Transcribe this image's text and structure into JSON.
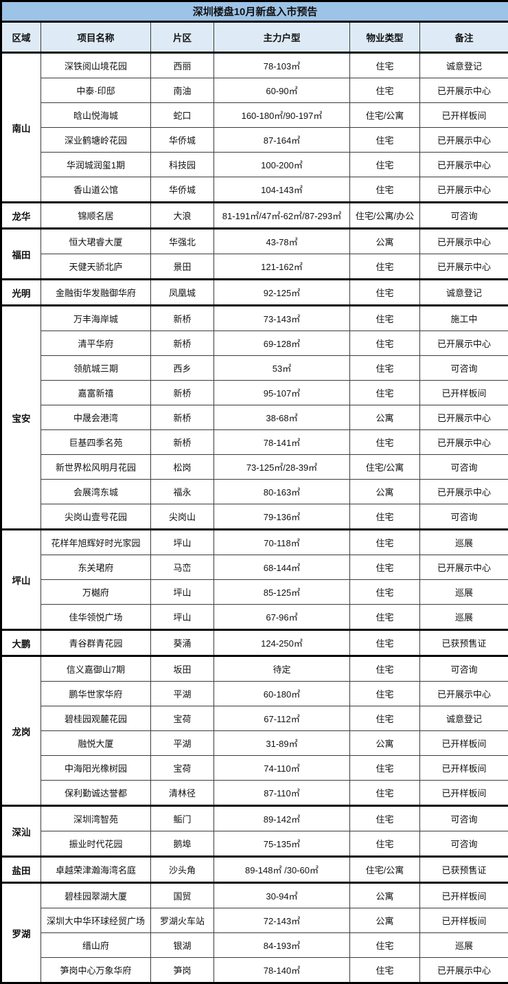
{
  "title": "深圳楼盘10月新盘入市预告",
  "columns": [
    "区域",
    "项目名称",
    "片区",
    "主力户型",
    "物业类型",
    "备注"
  ],
  "colors": {
    "title_bg": "#9DC3E6",
    "header_bg": "#DEEBF7",
    "border": "#000000",
    "text": "#111111"
  },
  "groups": [
    {
      "region": "南山",
      "rows": [
        [
          "深铁阅山境花园",
          "西丽",
          "78-103㎡",
          "住宅",
          "诚意登记"
        ],
        [
          "中泰·印邸",
          "南油",
          "60-90㎡",
          "住宅",
          "已开展示中心"
        ],
        [
          "晗山悦海城",
          "蛇口",
          "160-180㎡/90-197㎡",
          "住宅/公寓",
          "已开样板间"
        ],
        [
          "深业鹤塘岭花园",
          "华侨城",
          "87-164㎡",
          "住宅",
          "已开展示中心"
        ],
        [
          "华润城润玺1期",
          "科技园",
          "100-200㎡",
          "住宅",
          "已开展示中心"
        ],
        [
          "香山道公馆",
          "华侨城",
          "104-143㎡",
          "住宅",
          "已开展示中心"
        ]
      ]
    },
    {
      "region": "龙华",
      "rows": [
        [
          "锦顺名居",
          "大浪",
          "81-191㎡/47㎡-62㎡/87-293㎡",
          "住宅/公寓/办公",
          "可咨询"
        ]
      ]
    },
    {
      "region": "福田",
      "rows": [
        [
          "恒大珺睿大厦",
          "华强北",
          "43-78㎡",
          "公寓",
          "已开展示中心"
        ],
        [
          "天健天骄北庐",
          "景田",
          "121-162㎡",
          "住宅",
          "已开展示中心"
        ]
      ]
    },
    {
      "region": "光明",
      "rows": [
        [
          "金融街华发融御华府",
          "凤凰城",
          "92-125㎡",
          "住宅",
          "诚意登记"
        ]
      ]
    },
    {
      "region": "宝安",
      "rows": [
        [
          "万丰海岸城",
          "新桥",
          "73-143㎡",
          "住宅",
          "施工中"
        ],
        [
          "清平华府",
          "新桥",
          "69-128㎡",
          "住宅",
          "已开展示中心"
        ],
        [
          "领航城三期",
          "西乡",
          "53㎡",
          "住宅",
          "可咨询"
        ],
        [
          "嘉富新禧",
          "新桥",
          "95-107㎡",
          "住宅",
          "已开样板间"
        ],
        [
          "中晟会港湾",
          "新桥",
          "38-68㎡",
          "公寓",
          "已开展示中心"
        ],
        [
          "巨基四季名苑",
          "新桥",
          "78-141㎡",
          "住宅",
          "已开展示中心"
        ],
        [
          "新世界松风明月花园",
          "松岗",
          "73-125㎡/28-39㎡",
          "住宅/公寓",
          "可咨询"
        ],
        [
          "会展湾东城",
          "福永",
          "80-163㎡",
          "公寓",
          "已开展示中心"
        ],
        [
          "尖岗山壹号花园",
          "尖岗山",
          "79-136㎡",
          "住宅",
          "可咨询"
        ]
      ]
    },
    {
      "region": "坪山",
      "rows": [
        [
          "花样年旭辉好时光家园",
          "坪山",
          "70-118㎡",
          "住宅",
          "巡展"
        ],
        [
          "东关珺府",
          "马峦",
          "68-144㎡",
          "住宅",
          "已开展示中心"
        ],
        [
          "万樾府",
          "坪山",
          "85-125㎡",
          "住宅",
          "巡展"
        ],
        [
          "佳华领悦广场",
          "坪山",
          "67-96㎡",
          "住宅",
          "巡展"
        ]
      ]
    },
    {
      "region": "大鹏",
      "rows": [
        [
          "青谷群青花园",
          "葵涌",
          "124-250㎡",
          "住宅",
          "已获预售证"
        ]
      ]
    },
    {
      "region": "龙岗",
      "rows": [
        [
          "信义嘉御山7期",
          "坂田",
          "待定",
          "住宅",
          "可咨询"
        ],
        [
          "鹏华世家华府",
          "平湖",
          "60-180㎡",
          "住宅",
          "已开展示中心"
        ],
        [
          "碧桂园观麓花园",
          "宝荷",
          "67-112㎡",
          "住宅",
          "诚意登记"
        ],
        [
          "融悦大厦",
          "平湖",
          "31-89㎡",
          "公寓",
          "已开样板间"
        ],
        [
          "中海阳光橡树园",
          "宝荷",
          "74-110㎡",
          "住宅",
          "已开样板间"
        ],
        [
          "保利勤诚达誉都",
          "清林径",
          "87-110㎡",
          "住宅",
          "已开样板间"
        ]
      ]
    },
    {
      "region": "深汕",
      "rows": [
        [
          "深圳湾智苑",
          "鲘门",
          "89-142㎡",
          "住宅",
          "可咨询"
        ],
        [
          "振业时代花园",
          "鹅埠",
          "75-135㎡",
          "住宅",
          "可咨询"
        ]
      ]
    },
    {
      "region": "盐田",
      "rows": [
        [
          "卓越荣津瀚海湾名庭",
          "沙头角",
          "89-148㎡ /30-60㎡",
          "住宅/公寓",
          "已获预售证"
        ]
      ]
    },
    {
      "region": "罗湖",
      "rows": [
        [
          "碧桂园翠湖大厦",
          "国贸",
          "30-94㎡",
          "公寓",
          "已开样板间"
        ],
        [
          "深圳大中华环球经贸广场",
          "罗湖火车站",
          "72-143㎡",
          "公寓",
          "已开样板间"
        ],
        [
          "缙山府",
          "银湖",
          "84-193㎡",
          "住宅",
          "巡展"
        ],
        [
          "笋岗中心万象华府",
          "笋岗",
          "78-140㎡",
          "住宅",
          "已开展示中心"
        ]
      ]
    }
  ]
}
